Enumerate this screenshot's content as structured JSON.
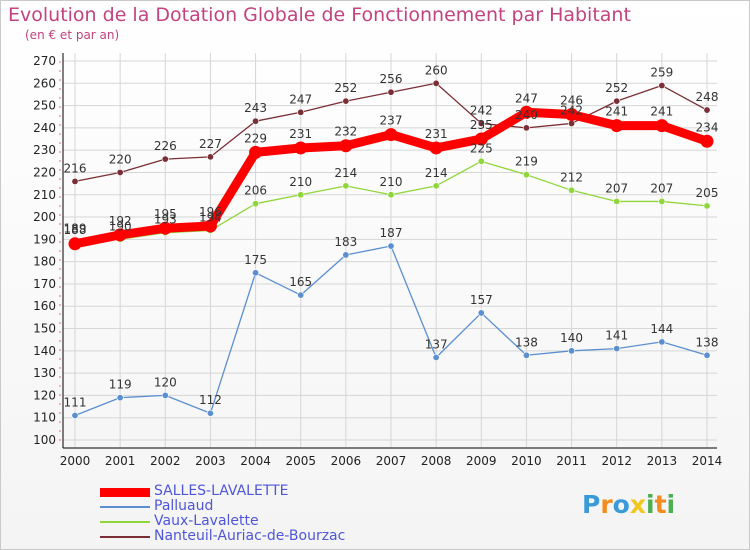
{
  "chart_data": {
    "type": "line",
    "title": "Evolution de la Dotation Globale de Fonctionnement par Habitant",
    "subtitle": "(en € et par an)",
    "xlabel": "",
    "ylabel": "",
    "ylim": [
      100,
      270
    ],
    "yticks": [
      100,
      110,
      120,
      130,
      140,
      150,
      160,
      170,
      180,
      190,
      200,
      210,
      220,
      230,
      240,
      250,
      260,
      270
    ],
    "categories": [
      "2000",
      "2001",
      "2002",
      "2003",
      "2004",
      "2005",
      "2006",
      "2007",
      "2008",
      "2009",
      "2010",
      "2011",
      "2012",
      "2013",
      "2014"
    ],
    "grid": true,
    "legend_position": "bottom-left",
    "series": [
      {
        "name": "SALLES-LAVALETTE",
        "color": "#ff0000",
        "values": [
          188,
          192,
          195,
          196,
          229,
          231,
          232,
          237,
          231,
          235,
          247,
          246,
          241,
          241,
          234
        ]
      },
      {
        "name": "Palluaud",
        "color": "#5b8fcf",
        "values": [
          111,
          119,
          120,
          112,
          175,
          165,
          183,
          187,
          137,
          157,
          138,
          140,
          141,
          144,
          138
        ]
      },
      {
        "name": "Vaux-Lavalette",
        "color": "#8fd63a",
        "values": [
          189,
          190,
          193,
          194,
          206,
          210,
          214,
          210,
          214,
          225,
          219,
          212,
          207,
          207,
          205
        ]
      },
      {
        "name": "Nanteuil-Auriac-de-Bourzac",
        "color": "#7a2e35",
        "values": [
          216,
          220,
          226,
          227,
          243,
          247,
          252,
          256,
          260,
          242,
          240,
          242,
          252,
          259,
          248
        ]
      }
    ]
  },
  "brand": {
    "letters": [
      "P",
      "r",
      "o",
      "x",
      "i",
      "t",
      "i"
    ],
    "colors": [
      "#3a9bd9",
      "#f28c1e",
      "#3a9bd9",
      "#f2c81e",
      "#4caf50",
      "#f28c1e",
      "#4caf50"
    ]
  }
}
